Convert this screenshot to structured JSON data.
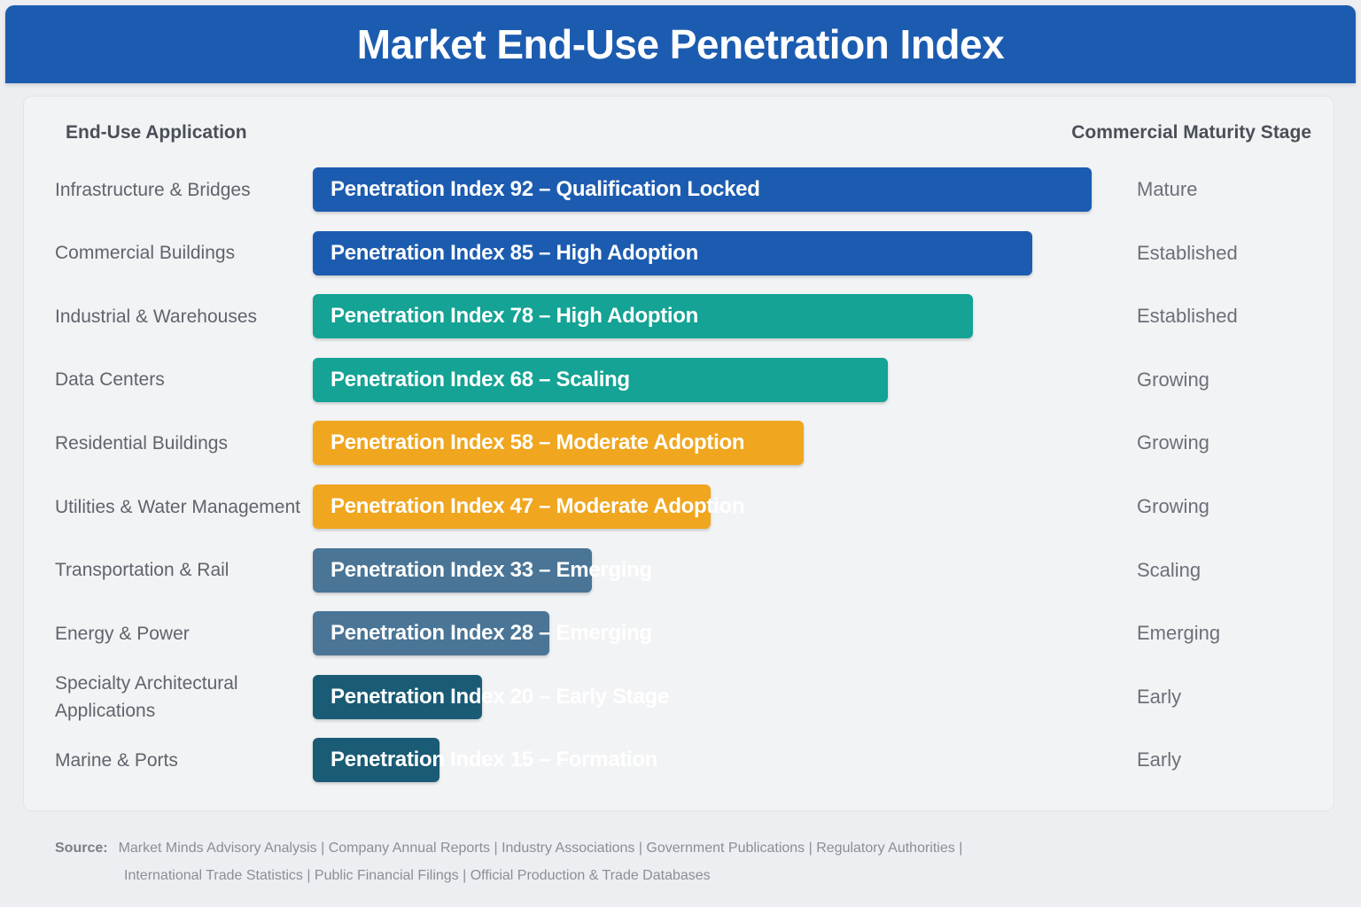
{
  "title": "Market End-Use Penetration Index",
  "columns": {
    "application": "End-Use Application",
    "stage": "Commercial Maturity Stage"
  },
  "colors": {
    "header": "#1c5cb0",
    "blue": "#1c5cb0",
    "teal": "#14a394",
    "orange": "#f0a61e",
    "slate": "#4a7596",
    "dark_teal": "#1a5b75"
  },
  "chart_data": {
    "type": "bar",
    "orientation": "horizontal",
    "title": "Market End-Use Penetration Index",
    "xlim": [
      0,
      100
    ],
    "rows": [
      {
        "category": "Infrastructure & Bridges",
        "value": 92,
        "bar_label": "Penetration Index 92 – Qualification Locked",
        "stage": "Mature",
        "color": "#1c5cb0"
      },
      {
        "category": "Commercial Buildings",
        "value": 85,
        "bar_label": "Penetration Index 85 – High Adoption",
        "stage": "Established",
        "color": "#1c5cb0"
      },
      {
        "category": "Industrial & Warehouses",
        "value": 78,
        "bar_label": "Penetration Index 78 – High Adoption",
        "stage": "Established",
        "color": "#14a394"
      },
      {
        "category": "Data Centers",
        "value": 68,
        "bar_label": "Penetration Index 68 – Scaling",
        "stage": "Growing",
        "color": "#14a394"
      },
      {
        "category": "Residential Buildings",
        "value": 58,
        "bar_label": "Penetration Index 58 – Moderate Adoption",
        "stage": "Growing",
        "color": "#f0a61e"
      },
      {
        "category": "Utilities & Water Management",
        "value": 47,
        "bar_label": "Penetration Index 47 – Moderate Adoption",
        "stage": "Growing",
        "color": "#f0a61e"
      },
      {
        "category": "Transportation & Rail",
        "value": 33,
        "bar_label": "Penetration Index 33 – Emerging",
        "stage": "Scaling",
        "color": "#4a7596"
      },
      {
        "category": "Energy & Power",
        "value": 28,
        "bar_label": "Penetration Index 28 – Emerging",
        "stage": "Emerging",
        "color": "#4a7596"
      },
      {
        "category": "Specialty Architectural Applications",
        "value": 20,
        "bar_label": "Penetration Index 20 – Early Stage",
        "stage": "Early",
        "color": "#1a5b75"
      },
      {
        "category": "Marine & Ports",
        "value": 15,
        "bar_label": "Penetration Index 15 – Formation",
        "stage": "Early",
        "color": "#1a5b75"
      }
    ]
  },
  "source": {
    "label": "Source:",
    "line1": "Market Minds Advisory Analysis | Company Annual Reports | Industry Associations | Government Publications | Regulatory Authorities |",
    "line2": "International Trade Statistics | Public Financial Filings | Official Production & Trade Databases"
  }
}
